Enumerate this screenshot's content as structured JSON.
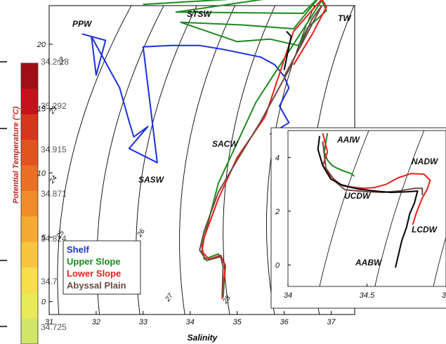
{
  "chart_data": {
    "type": "line",
    "xlabel": "Salinity",
    "ylabel": "Potential Temperature (°C)",
    "xlim": [
      31,
      37.5
    ],
    "ylim": [
      -1,
      23
    ],
    "xticks": [
      31,
      32,
      33,
      34,
      35,
      36,
      37
    ],
    "yticks": [
      0,
      5,
      10,
      15,
      20
    ],
    "density_labels": [
      "22",
      "23",
      "24",
      "25",
      "26",
      "27",
      "28"
    ],
    "annotations": [
      "PPW",
      "STSW",
      "TW",
      "SACW",
      "SASW"
    ],
    "legend": [
      "Shelf",
      "Upper Slope",
      "Lower Slope",
      "Abyssal Plain"
    ],
    "colors": {
      "Shelf": "#1a2fe0",
      "Upper Slope": "#1d8a1d",
      "Lower Slope": "#ee1c1c",
      "Abyssal Plain": "#6b4a40",
      "Black": "#000000"
    },
    "series": [
      {
        "name": "Shelf",
        "x": [
          31.7,
          32.2,
          32.0,
          31.9,
          32.5,
          32.7,
          32.8,
          33.1,
          32.7,
          33.3,
          33.0,
          33.6,
          34.2,
          34.7,
          35.5,
          35.8,
          36.0,
          36.1,
          35.9,
          36.1,
          35.7
        ],
        "y": [
          20.8,
          20.3,
          17.6,
          20.6,
          16.6,
          14.0,
          12.8,
          13.6,
          11.9,
          10.8,
          19.8,
          19.9,
          19.9,
          19.6,
          19.0,
          18.4,
          17.5,
          16.6,
          15.2,
          13.9,
          13.0
        ]
      },
      {
        "name": "Upper Slope",
        "x": [
          33.0,
          36.3,
          36.7,
          33.7,
          36.4,
          36.8,
          36.2,
          35.1,
          33.8,
          35.0,
          35.7,
          36.3,
          36.5,
          36.9,
          36.8,
          35.4,
          34.6,
          34.25,
          34.3,
          34.6,
          34.75,
          34.7
        ],
        "y": [
          23.1,
          23.8,
          24.1,
          22.5,
          22.4,
          23.9,
          21.2,
          21.5,
          21.7,
          20.2,
          20.4,
          19.9,
          21.3,
          22.6,
          23.4,
          15.5,
          9.2,
          4.3,
          3.3,
          3.7,
          2.8,
          0.3
        ]
      },
      {
        "name": "Lower Slope",
        "x": [
          36.2,
          36.6,
          36.9,
          36.8,
          36.2,
          35.6,
          35.0,
          34.6,
          34.3,
          34.25,
          34.4,
          34.65,
          34.75,
          34.7,
          34.68
        ],
        "y": [
          18.4,
          20.8,
          22.9,
          23.5,
          21.0,
          14.4,
          11.2,
          8.0,
          5.0,
          3.9,
          3.3,
          3.6,
          2.8,
          1.0,
          0.2
        ]
      },
      {
        "name": "Abyssal Plain",
        "x": [
          36.0,
          36.4,
          36.8,
          36.6,
          36.1,
          35.5,
          35.0,
          34.6,
          34.3,
          34.2,
          34.35,
          34.65,
          34.7,
          34.68
        ],
        "y": [
          17.5,
          20.2,
          23.0,
          22.0,
          18.0,
          14.0,
          11.0,
          8.5,
          5.5,
          4.0,
          3.2,
          3.5,
          2.7,
          0.4
        ]
      },
      {
        "name": "Black",
        "x": [
          36.05,
          36.15,
          36.1,
          36.0
        ],
        "y": [
          21.0,
          20.6,
          19.8,
          18.0
        ]
      }
    ],
    "inset": {
      "annotations": [
        "AAIW",
        "NADW",
        "UCDW",
        "LCDW",
        "AABW"
      ],
      "xticks": [
        "34",
        "34.5",
        "35"
      ],
      "yticks": [
        "0",
        "2",
        "4"
      ],
      "xlim": [
        34.0,
        35.0
      ],
      "ylim": [
        -0.8,
        5.0
      ],
      "series": [
        {
          "name": "Upper Slope",
          "x": [
            34.25,
            34.24,
            34.23,
            34.25,
            34.28,
            34.31,
            34.35,
            34.4,
            34.42
          ],
          "y": [
            4.9,
            4.6,
            4.2,
            3.9,
            3.7,
            3.6,
            3.5,
            3.4,
            3.3
          ]
        },
        {
          "name": "Lower Slope",
          "x": [
            34.22,
            34.25,
            34.22,
            34.27,
            34.33,
            34.4,
            34.48,
            34.55,
            34.62,
            34.7,
            34.78,
            34.86,
            34.9,
            34.88,
            34.85,
            34.83,
            34.81,
            34.79
          ],
          "y": [
            4.9,
            4.2,
            3.7,
            3.3,
            3.0,
            2.9,
            2.85,
            2.88,
            3.0,
            3.25,
            3.4,
            3.38,
            3.15,
            2.8,
            2.5,
            2.2,
            1.9,
            1.5
          ]
        },
        {
          "name": "Abyssal Plain",
          "x": [
            34.22,
            34.24,
            34.3,
            34.36,
            34.45,
            34.52,
            34.6,
            34.7,
            34.8,
            34.85,
            34.85
          ],
          "y": [
            4.6,
            3.6,
            3.1,
            2.8,
            2.75,
            2.72,
            2.7,
            2.75,
            2.85,
            2.85,
            2.6
          ]
        },
        {
          "name": "Black",
          "x": [
            34.2,
            34.19,
            34.22,
            34.27,
            34.35,
            34.45,
            34.55,
            34.65,
            34.75,
            34.82,
            34.8,
            34.77,
            34.75,
            34.72,
            34.7,
            34.68
          ],
          "y": [
            4.8,
            4.3,
            3.7,
            3.2,
            2.95,
            2.82,
            2.75,
            2.7,
            2.72,
            2.75,
            2.3,
            1.9,
            1.4,
            0.9,
            0.4,
            -0.1
          ]
        }
      ]
    }
  },
  "colorbar": {
    "ticks": [
      "34.725",
      "34.7",
      "34.824",
      "34.871",
      "34.915",
      "35.292",
      "34.2.18"
    ]
  }
}
